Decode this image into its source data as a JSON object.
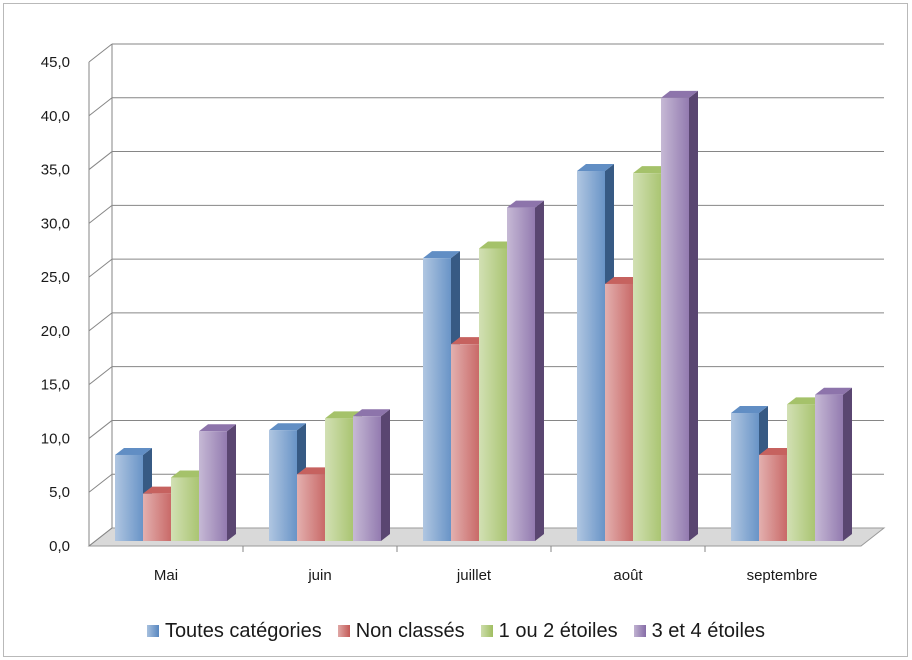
{
  "chart_data": {
    "type": "bar",
    "title": "",
    "xlabel": "",
    "ylabel": "",
    "ylim": [
      0,
      45
    ],
    "y_ticks": [
      "0,0",
      "5,0",
      "10,0",
      "15,0",
      "20,0",
      "25,0",
      "30,0",
      "35,0",
      "40,0",
      "45,0"
    ],
    "categories": [
      "Mai",
      "juin",
      "juillet",
      "août",
      "septembre"
    ],
    "grid": true,
    "legend_position": "bottom",
    "series": [
      {
        "name": "Toutes catégories",
        "color": "#4f81bd",
        "values": [
          8.0,
          10.3,
          26.3,
          34.4,
          11.9
        ]
      },
      {
        "name": "Non classés",
        "color": "#c0504d",
        "values": [
          4.4,
          6.2,
          18.3,
          23.9,
          8.0
        ]
      },
      {
        "name": "1 ou 2 étoiles",
        "color": "#9bbb59",
        "values": [
          5.9,
          11.4,
          27.2,
          34.2,
          12.7
        ]
      },
      {
        "name": "3 et 4 étoiles",
        "color": "#8064a2",
        "values": [
          10.2,
          11.6,
          31.0,
          41.2,
          13.6
        ]
      }
    ]
  }
}
